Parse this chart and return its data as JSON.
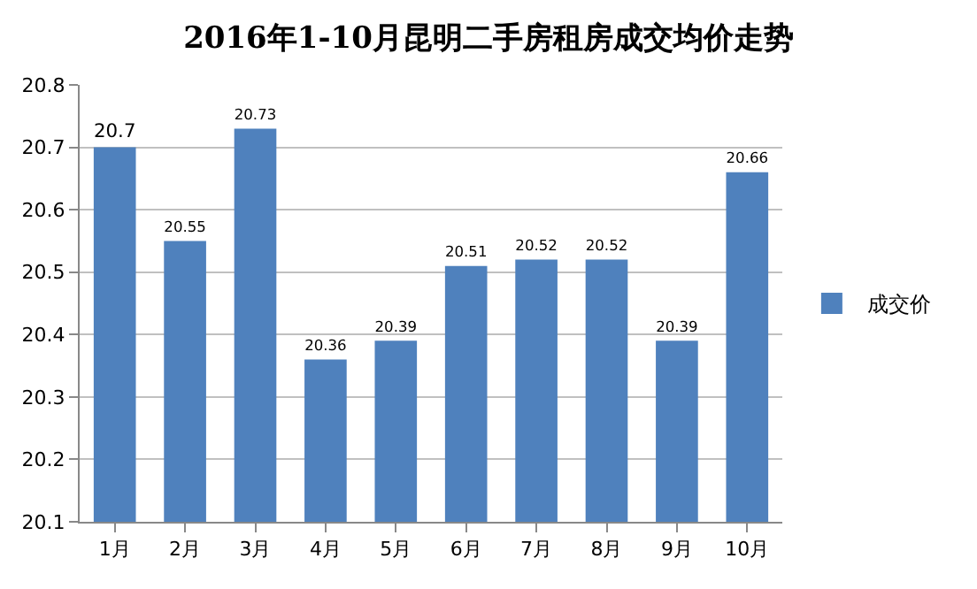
{
  "chart_data": {
    "type": "bar",
    "title": "2016年1-10月昆明二手房租房成交均价走势",
    "categories": [
      "1月",
      "2月",
      "3月",
      "4月",
      "5月",
      "6月",
      "7月",
      "8月",
      "9月",
      "10月"
    ],
    "series": [
      {
        "name": "成交价",
        "color": "#4f81bd",
        "values": [
          20.7,
          20.55,
          20.73,
          20.36,
          20.39,
          20.51,
          20.52,
          20.52,
          20.39,
          20.66
        ]
      }
    ],
    "ylim": [
      20.1,
      20.8
    ],
    "yticks": [
      20.1,
      20.2,
      20.3,
      20.4,
      20.5,
      20.6,
      20.7,
      20.8
    ],
    "grid": "y",
    "legend": "right",
    "data_labels": true
  }
}
